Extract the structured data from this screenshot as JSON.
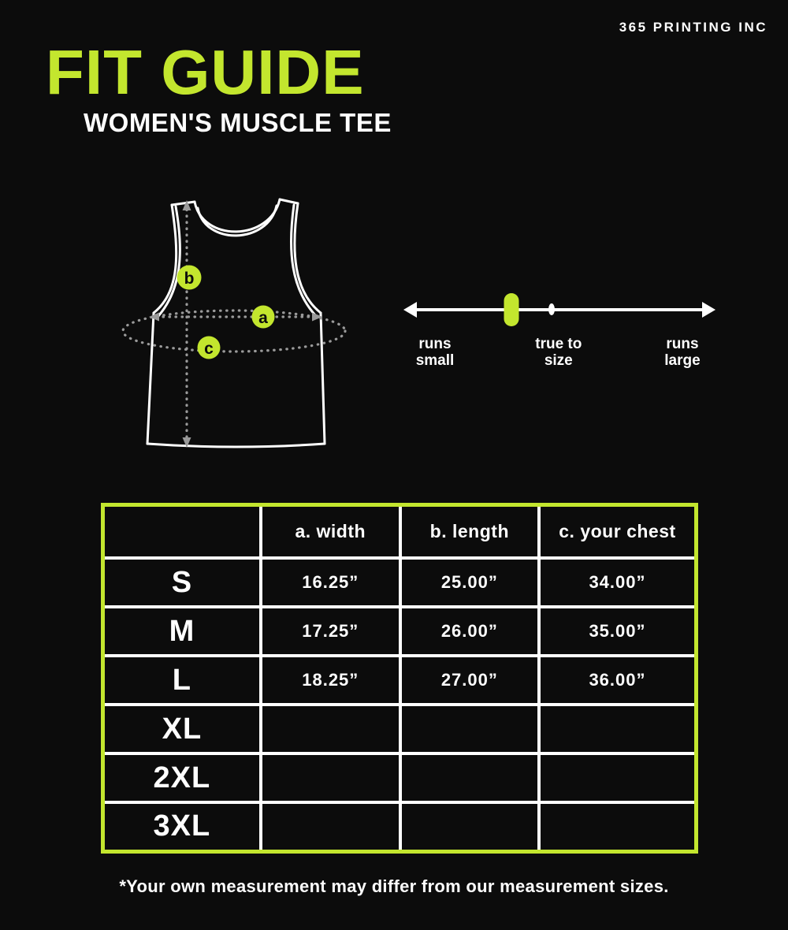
{
  "brand": "365 PRINTING INC",
  "title": "FIT GUIDE",
  "subtitle": "WOMEN'S MUSCLE TEE",
  "colors": {
    "accent_green": "#c3e62e",
    "background": "#0c0c0c",
    "text": "#ffffff",
    "dotted_line": "#9a9a9a"
  },
  "diagram": {
    "markers": [
      "a",
      "b",
      "c"
    ]
  },
  "fit_scale": {
    "labels": [
      "runs\nsmall",
      "true to\nsize",
      "runs\nlarge"
    ],
    "marker_position_percent": 34.6,
    "dot_position_percent": 47.5
  },
  "size_table": {
    "columns": [
      "",
      "a. width",
      "b. length",
      "c. your chest"
    ],
    "rows": [
      {
        "size": "S",
        "cells": [
          "16.25”",
          "25.00”",
          "34.00”"
        ]
      },
      {
        "size": "M",
        "cells": [
          "17.25”",
          "26.00”",
          "35.00”"
        ]
      },
      {
        "size": "L",
        "cells": [
          "18.25”",
          "27.00”",
          "36.00”"
        ]
      },
      {
        "size": "XL",
        "cells": [
          "",
          "",
          ""
        ]
      },
      {
        "size": "2XL",
        "cells": [
          "",
          "",
          ""
        ]
      },
      {
        "size": "3XL",
        "cells": [
          "",
          "",
          ""
        ]
      }
    ]
  },
  "footnote": "*Your own measurement may differ from our measurement sizes."
}
